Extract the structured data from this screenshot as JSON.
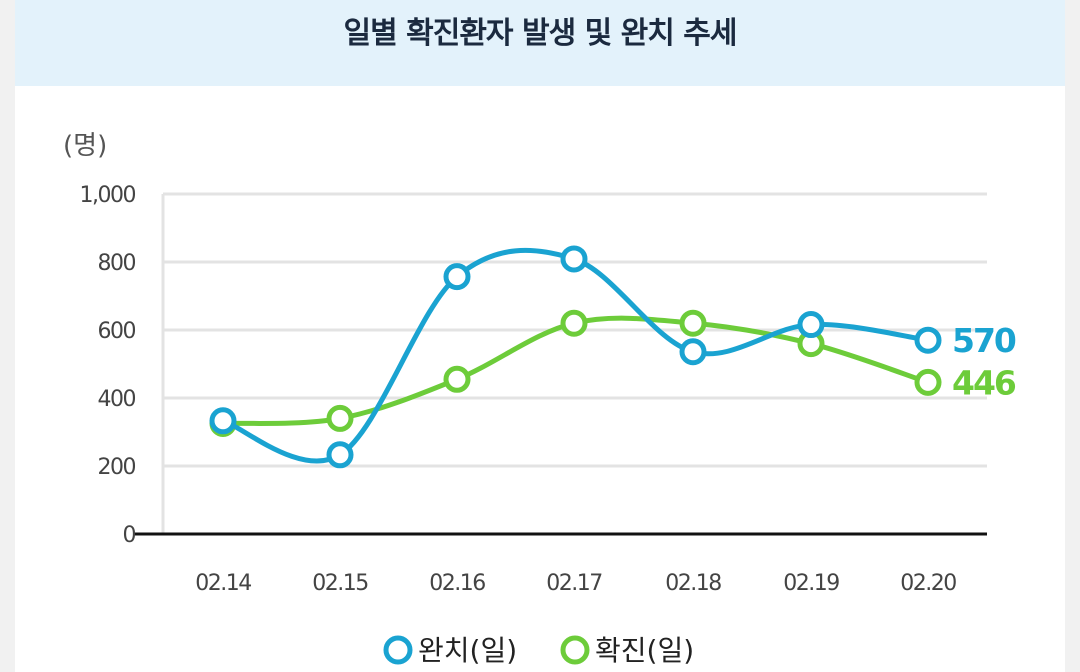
{
  "header": {
    "title": "일별 확진환자 발생 및 완치 추세"
  },
  "colors": {
    "cured": "#1aa3d1",
    "confirmed": "#6dcc3a"
  },
  "chart_data": {
    "type": "line",
    "title": "일별 확진환자 발생 및 완치 추세",
    "ylabel": "(명)",
    "xlabel": "",
    "ylim": [
      0,
      1000
    ],
    "yticks": [
      {
        "value": 0,
        "label": "0"
      },
      {
        "value": 200,
        "label": "200"
      },
      {
        "value": 400,
        "label": "400"
      },
      {
        "value": 600,
        "label": "600"
      },
      {
        "value": 800,
        "label": "800"
      },
      {
        "value": 1000,
        "label": "1,000"
      }
    ],
    "categories": [
      "02.14",
      "02.15",
      "02.16",
      "02.17",
      "02.18",
      "02.19",
      "02.20"
    ],
    "series": [
      {
        "name": "완치(일)",
        "key": "cured",
        "values": [
          333,
          233,
          757,
          809,
          536,
          616,
          570
        ],
        "end_label": "570"
      },
      {
        "name": "확진(일)",
        "key": "confirmed",
        "values": [
          325,
          340,
          455,
          620,
          620,
          560,
          446
        ],
        "end_label": "446"
      }
    ],
    "legend_position": "bottom",
    "grid": true
  }
}
